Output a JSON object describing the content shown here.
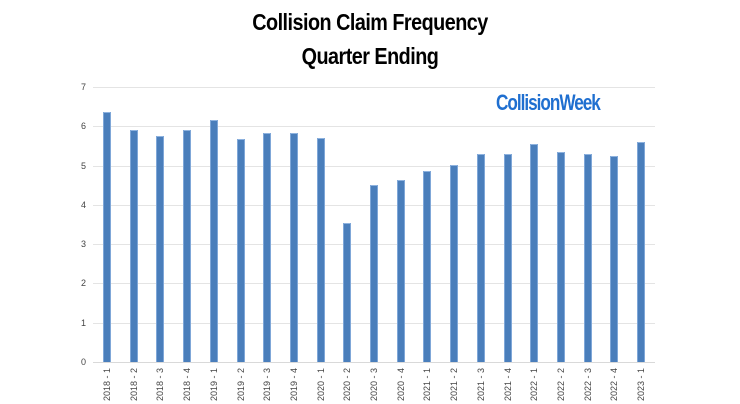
{
  "chart_data": {
    "type": "bar",
    "title": "Collision Claim Frequency",
    "subtitle": "Quarter Ending",
    "xlabel": "",
    "ylabel": "",
    "ylim": [
      0,
      7
    ],
    "yticks": [
      0,
      1,
      2,
      3,
      4,
      5,
      6,
      7
    ],
    "grid": true,
    "legend": null,
    "annotations": [
      "CollisionWeek"
    ],
    "categories": [
      "2018 - 1",
      "2018 - 2",
      "2018 - 3",
      "2018 - 4",
      "2019 - 1",
      "2019 - 2",
      "2019 - 3",
      "2019 - 4",
      "2020 - 1",
      "2020 - 2",
      "2020 - 3",
      "2020 - 4",
      "2021 - 1",
      "2021 - 2",
      "2021 - 3",
      "2021 - 4",
      "2022 - 1",
      "2022 - 2",
      "2022 - 3",
      "2022 - 4",
      "2023 - 1"
    ],
    "values": [
      6.36,
      5.91,
      5.76,
      5.9,
      6.16,
      5.67,
      5.82,
      5.83,
      5.7,
      3.53,
      4.5,
      4.63,
      4.86,
      5.01,
      5.3,
      5.28,
      5.55,
      5.34,
      5.3,
      5.23,
      5.6
    ],
    "bar_color": "#4a7ebb"
  },
  "header": {
    "title": "Collision Claim Frequency",
    "subtitle": "Quarter Ending"
  },
  "logo": {
    "text": "CollisionWeek",
    "color": "#1f6fd0"
  }
}
